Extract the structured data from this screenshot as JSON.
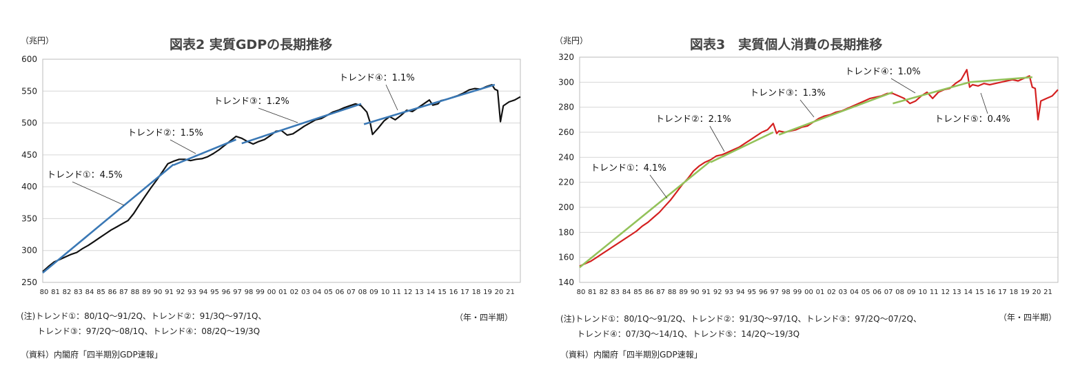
{
  "left": {
    "title": "図表2 実質GDPの長期推移",
    "unit": "（兆円）",
    "period_label": "（年・四半期）",
    "notes": [
      "(注)トレンド①：80/1Q～91/2Q、トレンド②：91/3Q～97/1Q、",
      "　　トレンド③：97/2Q～08/1Q、トレンド④：08/2Q～19/3Q"
    ],
    "source": "（資料）内閣府「四半期別GDP速報」"
  },
  "right": {
    "title": "図表3　実質個人消費の長期推移",
    "unit": "（兆円）",
    "period_label": "（年・四半期）",
    "notes": [
      "(注)トレンド①：80/1Q～91/2Q、トレンド②：91/3Q～97/1Q、トレンド③：97/2Q～07/2Q、",
      "　　トレンド④：07/3Q～14/1Q、トレンド⑤：14/2Q～19/3Q"
    ],
    "source": "（資料）内閣府「四半期別GDP速報」"
  },
  "chart_data": [
    {
      "type": "line",
      "title": "図表2 実質GDPの長期推移",
      "ylabel": "（兆円）",
      "xlabel": "（年・四半期）",
      "ylim": [
        250,
        600
      ],
      "yticks": [
        250,
        300,
        350,
        400,
        450,
        500,
        550,
        600
      ],
      "x_range": [
        1980,
        2022
      ],
      "x_tick_labels": [
        "80",
        "81",
        "82",
        "83",
        "84",
        "85",
        "86",
        "87",
        "88",
        "89",
        "90",
        "91",
        "92",
        "93",
        "94",
        "95",
        "96",
        "97",
        "98",
        "99",
        "00",
        "01",
        "02",
        "03",
        "04",
        "05",
        "06",
        "07",
        "08",
        "09",
        "10",
        "11",
        "12",
        "13",
        "14",
        "15",
        "16",
        "17",
        "18",
        "19",
        "20",
        "21"
      ],
      "grid": true,
      "line_color": "#111111",
      "trend_color": "#3a78b5",
      "series": [
        {
          "name": "",
          "points": [
            [
              1980.0,
              267
            ],
            [
              1980.5,
              275
            ],
            [
              1981.0,
              282
            ],
            [
              1981.5,
              286
            ],
            [
              1982.0,
              290
            ],
            [
              1982.5,
              294
            ],
            [
              1983.0,
              297
            ],
            [
              1983.5,
              303
            ],
            [
              1984.0,
              308
            ],
            [
              1984.5,
              314
            ],
            [
              1985.0,
              320
            ],
            [
              1985.5,
              326
            ],
            [
              1986.0,
              332
            ],
            [
              1986.5,
              337
            ],
            [
              1987.0,
              342
            ],
            [
              1987.5,
              347
            ],
            [
              1988.0,
              358
            ],
            [
              1988.5,
              372
            ],
            [
              1989.0,
              385
            ],
            [
              1989.5,
              398
            ],
            [
              1990.0,
              410
            ],
            [
              1990.5,
              423
            ],
            [
              1991.0,
              436
            ],
            [
              1991.5,
              440
            ],
            [
              1992.0,
              443
            ],
            [
              1992.5,
              443
            ],
            [
              1993.0,
              441
            ],
            [
              1993.5,
              443
            ],
            [
              1994.0,
              444
            ],
            [
              1994.5,
              447
            ],
            [
              1995.0,
              452
            ],
            [
              1995.5,
              458
            ],
            [
              1996.0,
              465
            ],
            [
              1996.5,
              472
            ],
            [
              1997.0,
              479
            ],
            [
              1997.5,
              476
            ],
            [
              1998.0,
              471
            ],
            [
              1998.5,
              467
            ],
            [
              1999.0,
              471
            ],
            [
              1999.5,
              474
            ],
            [
              2000.0,
              480
            ],
            [
              2000.5,
              487
            ],
            [
              2001.0,
              488
            ],
            [
              2001.5,
              481
            ],
            [
              2002.0,
              483
            ],
            [
              2002.5,
              489
            ],
            [
              2003.0,
              495
            ],
            [
              2003.5,
              500
            ],
            [
              2004.0,
              505
            ],
            [
              2004.5,
              507
            ],
            [
              2005.0,
              512
            ],
            [
              2005.5,
              517
            ],
            [
              2006.0,
              520
            ],
            [
              2006.5,
              524
            ],
            [
              2007.0,
              527
            ],
            [
              2007.5,
              530
            ],
            [
              2008.0,
              527
            ],
            [
              2008.5,
              517
            ],
            [
              2008.8,
              500
            ],
            [
              2009.0,
              482
            ],
            [
              2009.5,
              492
            ],
            [
              2010.0,
              503
            ],
            [
              2010.5,
              510
            ],
            [
              2011.0,
              505
            ],
            [
              2011.5,
              512
            ],
            [
              2012.0,
              520
            ],
            [
              2012.5,
              518
            ],
            [
              2013.0,
              524
            ],
            [
              2013.5,
              530
            ],
            [
              2014.0,
              536
            ],
            [
              2014.3,
              528
            ],
            [
              2014.75,
              530
            ],
            [
              2015.0,
              535
            ],
            [
              2015.5,
              537
            ],
            [
              2016.0,
              540
            ],
            [
              2016.5,
              543
            ],
            [
              2017.0,
              547
            ],
            [
              2017.5,
              552
            ],
            [
              2018.0,
              554
            ],
            [
              2018.5,
              553
            ],
            [
              2019.0,
              557
            ],
            [
              2019.5,
              560
            ],
            [
              2019.75,
              553
            ],
            [
              2020.0,
              551
            ],
            [
              2020.25,
              502
            ],
            [
              2020.5,
              527
            ],
            [
              2021.0,
              533
            ],
            [
              2021.5,
              536
            ],
            [
              2022.0,
              541
            ]
          ]
        }
      ],
      "trends": [
        {
          "label": "トレンド①：4.5%",
          "from": [
            1980.0,
            265
          ],
          "to": [
            1991.5,
            435
          ]
        },
        {
          "label": "トレンド②：1.5%",
          "from": [
            1991.5,
            434
          ],
          "to": [
            1997.0,
            474
          ]
        },
        {
          "label": "トレンド③：1.2%",
          "from": [
            1997.5,
            468
          ],
          "to": [
            2008.0,
            530
          ]
        },
        {
          "label": "トレンド④：1.1%",
          "from": [
            2008.25,
            498
          ],
          "to": [
            2019.75,
            560
          ]
        }
      ]
    },
    {
      "type": "line",
      "title": "図表3　実質個人消費の長期推移",
      "ylabel": "（兆円）",
      "xlabel": "（年・四半期）",
      "ylim": [
        140,
        320
      ],
      "yticks": [
        140,
        160,
        180,
        200,
        220,
        240,
        260,
        280,
        300,
        320
      ],
      "x_range": [
        1980,
        2022
      ],
      "x_tick_labels": [
        "80",
        "81",
        "82",
        "83",
        "84",
        "85",
        "86",
        "87",
        "88",
        "89",
        "90",
        "91",
        "92",
        "93",
        "94",
        "95",
        "96",
        "97",
        "98",
        "99",
        "00",
        "01",
        "02",
        "03",
        "04",
        "05",
        "06",
        "07",
        "08",
        "09",
        "10",
        "11",
        "12",
        "13",
        "14",
        "15",
        "16",
        "17",
        "18",
        "19",
        "20",
        "21"
      ],
      "grid": true,
      "line_color": "#d42020",
      "trend_color": "#93c25a",
      "series": [
        {
          "name": "",
          "points": [
            [
              1980.0,
              153
            ],
            [
              1980.5,
              155
            ],
            [
              1981.0,
              157
            ],
            [
              1981.5,
              160
            ],
            [
              1982.0,
              163
            ],
            [
              1982.5,
              166
            ],
            [
              1983.0,
              169
            ],
            [
              1983.5,
              172
            ],
            [
              1984.0,
              175
            ],
            [
              1984.5,
              178
            ],
            [
              1985.0,
              181
            ],
            [
              1985.5,
              185
            ],
            [
              1986.0,
              188
            ],
            [
              1986.5,
              192
            ],
            [
              1987.0,
              196
            ],
            [
              1987.5,
              201
            ],
            [
              1988.0,
              206
            ],
            [
              1988.5,
              212
            ],
            [
              1989.0,
              218
            ],
            [
              1989.5,
              223
            ],
            [
              1990.0,
              229
            ],
            [
              1990.5,
              233
            ],
            [
              1991.0,
              236
            ],
            [
              1991.5,
              238
            ],
            [
              1992.0,
              241
            ],
            [
              1992.5,
              242
            ],
            [
              1993.0,
              244
            ],
            [
              1993.5,
              246
            ],
            [
              1994.0,
              248
            ],
            [
              1994.5,
              251
            ],
            [
              1995.0,
              254
            ],
            [
              1995.5,
              257
            ],
            [
              1996.0,
              260
            ],
            [
              1996.5,
              262
            ],
            [
              1997.0,
              267
            ],
            [
              1997.3,
              259
            ],
            [
              1997.5,
              261
            ],
            [
              1998.0,
              260
            ],
            [
              1998.5,
              261
            ],
            [
              1999.0,
              262
            ],
            [
              1999.5,
              264
            ],
            [
              2000.0,
              265
            ],
            [
              2000.5,
              268
            ],
            [
              2001.0,
              271
            ],
            [
              2001.5,
              273
            ],
            [
              2002.0,
              274
            ],
            [
              2002.5,
              276
            ],
            [
              2003.0,
              277
            ],
            [
              2003.5,
              279
            ],
            [
              2004.0,
              281
            ],
            [
              2004.5,
              283
            ],
            [
              2005.0,
              285
            ],
            [
              2005.5,
              287
            ],
            [
              2006.0,
              288
            ],
            [
              2006.5,
              289
            ],
            [
              2007.0,
              291
            ],
            [
              2007.5,
              291
            ],
            [
              2008.0,
              289
            ],
            [
              2008.5,
              287
            ],
            [
              2009.0,
              283
            ],
            [
              2009.5,
              285
            ],
            [
              2010.0,
              289
            ],
            [
              2010.5,
              292
            ],
            [
              2011.0,
              287
            ],
            [
              2011.5,
              292
            ],
            [
              2012.0,
              294
            ],
            [
              2012.5,
              295
            ],
            [
              2013.0,
              299
            ],
            [
              2013.5,
              302
            ],
            [
              2014.0,
              310
            ],
            [
              2014.25,
              296
            ],
            [
              2014.5,
              298
            ],
            [
              2015.0,
              297
            ],
            [
              2015.5,
              299
            ],
            [
              2016.0,
              298
            ],
            [
              2016.5,
              299
            ],
            [
              2017.0,
              300
            ],
            [
              2017.5,
              301
            ],
            [
              2018.0,
              302
            ],
            [
              2018.5,
              301
            ],
            [
              2019.0,
              303
            ],
            [
              2019.5,
              305
            ],
            [
              2019.75,
              296
            ],
            [
              2020.0,
              295
            ],
            [
              2020.25,
              270
            ],
            [
              2020.5,
              285
            ],
            [
              2021.0,
              287
            ],
            [
              2021.5,
              289
            ],
            [
              2022.0,
              294
            ]
          ]
        }
      ],
      "trends": [
        {
          "label": "トレンド①：4.1%",
          "from": [
            1980.0,
            152
          ],
          "to": [
            1991.5,
            237
          ]
        },
        {
          "label": "トレンド②：2.1%",
          "from": [
            1991.5,
            236
          ],
          "to": [
            1997.0,
            260
          ]
        },
        {
          "label": "トレンド③：1.3%",
          "from": [
            1997.5,
            258
          ],
          "to": [
            2007.5,
            292
          ]
        },
        {
          "label": "トレンド④：1.0%",
          "from": [
            2007.5,
            283
          ],
          "to": [
            2014.25,
            300
          ]
        },
        {
          "label": "トレンド⑤：0.4%",
          "from": [
            2014.25,
            300
          ],
          "to": [
            2019.75,
            304
          ]
        }
      ]
    }
  ]
}
